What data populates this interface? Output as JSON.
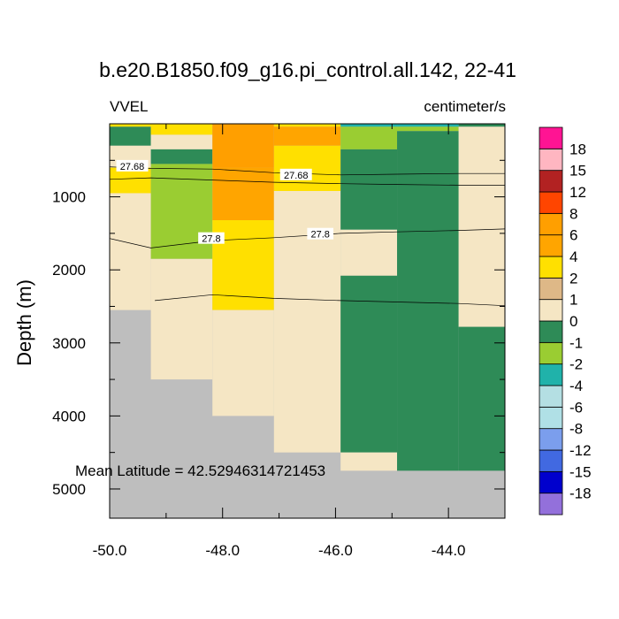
{
  "chart_data": {
    "type": "heatmap",
    "title": "b.e20.B1850.f09_g16.pi_control.all.142, 22-41",
    "variable_label": "VVEL",
    "units_label": "centimeter/s",
    "ylabel": "Depth (m)",
    "xlabel": "",
    "xlim": [
      -50.0,
      -43.0
    ],
    "ylim": [
      0,
      5400
    ],
    "x_ticks": [
      -50,
      -48,
      -46,
      -44
    ],
    "x_tick_labels": [
      "-50.0",
      "-48.0",
      "-46.0",
      "-44.0"
    ],
    "y_ticks": [
      1000,
      2000,
      3000,
      4000,
      5000
    ],
    "y_tick_labels": [
      "1000",
      "2000",
      "3000",
      "4000",
      "5000"
    ],
    "annotation": "Mean Latitude = 42.52946314721453",
    "missing_color": "#bebebe",
    "colorbar": {
      "colors": [
        "#9370db",
        "#0000cd",
        "#4169e1",
        "#7b9eed",
        "#b0e0e6",
        "#b4dfe3",
        "#20b2aa",
        "#9acd32",
        "#2e8b57",
        "#f5e6c4",
        "#deb887",
        "#ffe000",
        "#ffa500",
        "#ff9f00",
        "#ff4500",
        "#b22222",
        "#ffb6c1",
        "#ff1493"
      ],
      "labels": [
        "-18",
        "-15",
        "-12",
        "-8",
        "-6",
        "-4",
        "-2",
        "-1",
        "0",
        "1",
        "2",
        "4",
        "6",
        "8",
        "12",
        "15",
        "18"
      ]
    },
    "columns": [
      {
        "x": [
          -50.0,
          -49.27
        ],
        "bottom": 2550,
        "cells": [
          [
            0,
            40,
            3
          ],
          [
            40,
            300,
            -1
          ],
          [
            300,
            600,
            0
          ],
          [
            600,
            950,
            2
          ],
          [
            950,
            2550,
            0
          ]
        ]
      },
      {
        "x": [
          -49.27,
          -48.18
        ],
        "bottom": 3500,
        "cells": [
          [
            0,
            150,
            2
          ],
          [
            150,
            350,
            0
          ],
          [
            350,
            550,
            -1
          ],
          [
            550,
            1850,
            -2
          ],
          [
            1850,
            3500,
            0
          ]
        ]
      },
      {
        "x": [
          -48.18,
          -47.09
        ],
        "bottom": 4000,
        "cells": [
          [
            0,
            600,
            6
          ],
          [
            600,
            1320,
            4
          ],
          [
            1320,
            2550,
            2
          ],
          [
            2550,
            4000,
            0
          ]
        ]
      },
      {
        "x": [
          -47.09,
          -45.91
        ],
        "bottom": 4500,
        "cells": [
          [
            0,
            40,
            2
          ],
          [
            40,
            300,
            4
          ],
          [
            300,
            920,
            2
          ],
          [
            920,
            4500,
            0
          ]
        ]
      },
      {
        "x": [
          -45.91,
          -44.91
        ],
        "bottom": 4750,
        "cells": [
          [
            0,
            40,
            -4
          ],
          [
            40,
            350,
            -2
          ],
          [
            350,
            1450,
            -1
          ],
          [
            1450,
            2080,
            0
          ],
          [
            2080,
            4500,
            -1
          ],
          [
            4500,
            4750,
            0
          ]
        ]
      },
      {
        "x": [
          -44.91,
          -43.82
        ],
        "bottom": 4750,
        "cells": [
          [
            0,
            40,
            -4
          ],
          [
            40,
            100,
            -2
          ],
          [
            100,
            4750,
            -1
          ]
        ]
      },
      {
        "x": [
          -43.82,
          -43.0
        ],
        "bottom": 4750,
        "cells": [
          [
            0,
            40,
            -1
          ],
          [
            40,
            2780,
            0
          ],
          [
            2780,
            4750,
            -1
          ]
        ]
      }
    ],
    "contours": [
      {
        "level": "27.68",
        "points": [
          [
            -50.0,
            590
          ],
          [
            -49.27,
            610
          ],
          [
            -48.18,
            620
          ],
          [
            -47.09,
            670
          ],
          [
            -45.91,
            700
          ],
          [
            -44.91,
            690
          ],
          [
            -43.82,
            680
          ],
          [
            -43.0,
            680
          ]
        ],
        "labels": [
          [
            -49.6,
            580
          ],
          [
            -46.7,
            700
          ]
        ]
      },
      {
        "level": "",
        "points": [
          [
            -50.0,
            760
          ],
          [
            -49.27,
            740
          ],
          [
            -48.18,
            770
          ],
          [
            -47.09,
            800
          ],
          [
            -45.91,
            820
          ],
          [
            -44.91,
            830
          ],
          [
            -43.82,
            840
          ],
          [
            -43.0,
            840
          ]
        ],
        "labels": []
      },
      {
        "level": "27.8",
        "points": [
          [
            -50.0,
            1570
          ],
          [
            -49.27,
            1700
          ],
          [
            -48.18,
            1600
          ],
          [
            -47.09,
            1560
          ],
          [
            -45.91,
            1500
          ],
          [
            -44.91,
            1480
          ],
          [
            -43.82,
            1460
          ],
          [
            -43.0,
            1440
          ]
        ],
        "labels": [
          [
            -48.2,
            1570
          ],
          [
            -46.27,
            1510
          ]
        ]
      },
      {
        "level": "",
        "points": [
          [
            -49.2,
            2420
          ],
          [
            -48.18,
            2340
          ],
          [
            -47.09,
            2390
          ],
          [
            -45.91,
            2420
          ],
          [
            -44.91,
            2440
          ],
          [
            -43.82,
            2460
          ],
          [
            -43.0,
            2490
          ]
        ],
        "labels": []
      }
    ]
  }
}
